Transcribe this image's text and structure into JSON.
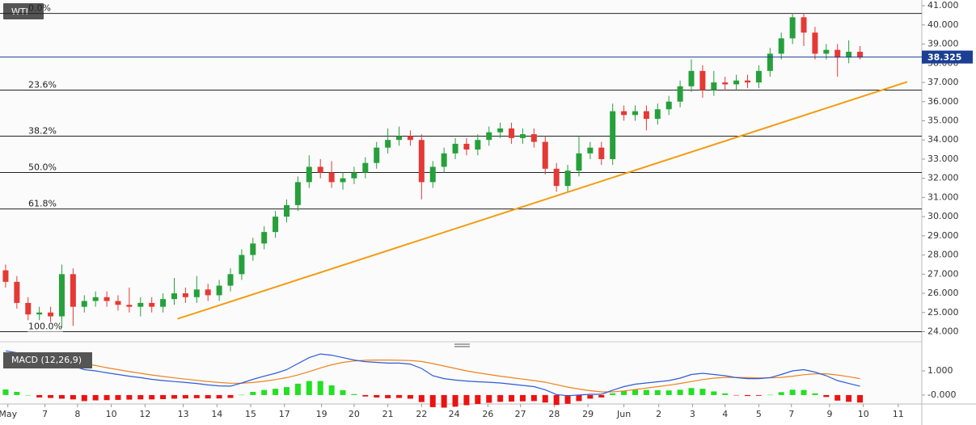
{
  "symbol": "WTI",
  "chart_data": [
    {
      "type": "candlestick",
      "xlim": [
        -0.5,
        81.5
      ],
      "ylim": [
        23.6,
        41.3
      ],
      "yticks": [
        {
          "value": 24,
          "label": "24.000"
        },
        {
          "value": 25,
          "label": "25.000"
        },
        {
          "value": 26,
          "label": "26.000"
        },
        {
          "value": 27,
          "label": "27.000"
        },
        {
          "value": 28,
          "label": "28.000"
        },
        {
          "value": 29,
          "label": "29.000"
        },
        {
          "value": 30,
          "label": "30.000"
        },
        {
          "value": 31,
          "label": "31.000"
        },
        {
          "value": 32,
          "label": "32.000"
        },
        {
          "value": 33,
          "label": "33.000"
        },
        {
          "value": 34,
          "label": "34.000"
        },
        {
          "value": 35,
          "label": "35.000"
        },
        {
          "value": 36,
          "label": "36.000"
        },
        {
          "value": 37,
          "label": "37.000"
        },
        {
          "value": 38,
          "label": "38.000"
        },
        {
          "value": 39,
          "label": "39.000"
        },
        {
          "value": 40,
          "label": "40.000"
        },
        {
          "value": 41,
          "label": "41.000"
        }
      ],
      "up_color": "#26a03b",
      "down_color": "#e53935",
      "open": [
        27.2,
        26.6,
        25.5,
        24.9,
        25.0,
        24.8,
        27.0,
        25.3,
        25.6,
        25.8,
        25.6,
        25.4,
        25.3,
        25.5,
        25.3,
        25.7,
        26.0,
        25.8,
        26.2,
        25.9,
        26.4,
        27.0,
        28.0,
        28.6,
        29.2,
        30.0,
        30.6,
        31.8,
        32.6,
        32.3,
        31.8,
        32.0,
        32.3,
        32.8,
        33.6,
        34.0,
        34.2,
        34.0,
        31.8,
        32.6,
        33.3,
        33.8,
        33.5,
        34.0,
        34.4,
        34.6,
        34.1,
        34.3,
        33.9,
        32.5,
        31.6,
        32.4,
        33.3,
        33.6,
        33.0,
        35.5,
        35.3,
        35.5,
        35.1,
        35.6,
        36.0,
        36.8,
        37.6,
        36.6,
        37.0,
        36.9,
        37.1,
        37.0,
        37.6,
        38.5,
        39.3,
        40.4,
        39.6,
        38.5,
        38.7,
        38.3,
        38.6
      ],
      "high": [
        27.5,
        26.9,
        25.8,
        25.3,
        25.3,
        27.5,
        27.3,
        25.9,
        26.1,
        26.1,
        25.9,
        26.3,
        25.8,
        25.8,
        26.0,
        26.8,
        26.3,
        26.9,
        26.5,
        26.7,
        27.3,
        28.3,
        28.9,
        29.5,
        30.3,
        30.9,
        32.1,
        33.2,
        33.0,
        32.9,
        32.3,
        32.6,
        33.1,
        33.9,
        34.6,
        34.7,
        34.5,
        34.3,
        32.9,
        33.6,
        34.1,
        34.1,
        34.3,
        34.7,
        34.9,
        34.9,
        34.6,
        34.6,
        34.2,
        32.8,
        32.7,
        34.2,
        33.9,
        33.9,
        35.9,
        35.8,
        35.8,
        35.8,
        35.9,
        36.3,
        37.1,
        38.2,
        37.9,
        37.6,
        37.3,
        37.4,
        37.4,
        37.9,
        38.8,
        39.6,
        40.6,
        40.6,
        39.9,
        39.0,
        39.0,
        39.2,
        38.9
      ],
      "low": [
        26.3,
        25.2,
        24.6,
        24.6,
        24.5,
        24.2,
        24.3,
        25.0,
        25.3,
        25.3,
        25.1,
        25.0,
        24.8,
        25.0,
        25.0,
        25.4,
        25.5,
        25.5,
        25.6,
        25.6,
        26.1,
        26.7,
        27.7,
        28.3,
        28.9,
        29.7,
        30.3,
        31.5,
        32.0,
        31.5,
        31.4,
        31.7,
        32.0,
        32.5,
        33.3,
        33.7,
        33.7,
        30.9,
        31.5,
        32.3,
        33.0,
        33.2,
        33.2,
        33.7,
        34.1,
        33.8,
        33.8,
        33.6,
        32.2,
        31.3,
        31.3,
        32.1,
        33.0,
        32.7,
        32.7,
        35.0,
        35.0,
        34.5,
        34.8,
        35.3,
        35.7,
        36.5,
        36.2,
        36.3,
        36.6,
        36.6,
        36.7,
        36.7,
        37.3,
        38.2,
        39.0,
        38.9,
        38.2,
        38.2,
        37.3,
        38.0,
        38.2
      ],
      "close": [
        26.6,
        25.5,
        24.9,
        25.0,
        24.8,
        27.0,
        25.3,
        25.6,
        25.8,
        25.6,
        25.4,
        25.3,
        25.5,
        25.3,
        25.7,
        26.0,
        25.8,
        26.2,
        25.9,
        26.4,
        27.0,
        28.0,
        28.6,
        29.2,
        30.0,
        30.6,
        31.8,
        32.6,
        32.3,
        31.8,
        32.0,
        32.3,
        32.8,
        33.6,
        34.0,
        34.2,
        34.0,
        31.8,
        32.6,
        33.3,
        33.8,
        33.5,
        34.0,
        34.4,
        34.6,
        34.1,
        34.3,
        33.9,
        32.5,
        31.6,
        32.4,
        33.3,
        33.6,
        33.0,
        35.5,
        35.3,
        35.5,
        35.1,
        35.6,
        36.0,
        36.8,
        37.6,
        36.6,
        37.0,
        36.9,
        37.1,
        37.0,
        37.6,
        38.5,
        39.3,
        40.4,
        39.6,
        38.5,
        38.7,
        38.3,
        38.6,
        38.3
      ],
      "last_price": 38.325,
      "last_price_color": "#1c3f94",
      "fib_levels": [
        {
          "label": "0.0%",
          "price": 40.6
        },
        {
          "label": "23.6%",
          "price": 36.6
        },
        {
          "label": "38.2%",
          "price": 34.2
        },
        {
          "label": "50.0%",
          "price": 32.3
        },
        {
          "label": "61.8%",
          "price": 30.4
        },
        {
          "label": "100.0%",
          "price": 24.0
        }
      ],
      "trendline": {
        "x": [
          15.3,
          80.2
        ],
        "y": [
          24.67,
          37.03
        ],
        "color": "#f39c12"
      }
    },
    {
      "type": "macd",
      "title": "MACD (12,26,9)",
      "xlim": [
        -0.5,
        81.5
      ],
      "ylim": [
        -0.37,
        1.97
      ],
      "yticks": [
        {
          "value": 1,
          "label": "1.000"
        },
        {
          "value": 0,
          "label": "-0.000"
        }
      ],
      "xticks": [
        {
          "value": 0.2,
          "label": "May"
        },
        {
          "value": 3.5,
          "label": "7"
        },
        {
          "value": 6.4,
          "label": "8"
        },
        {
          "value": 9.4,
          "label": "10"
        },
        {
          "value": 12.4,
          "label": "12"
        },
        {
          "value": 15.8,
          "label": "13"
        },
        {
          "value": 18.8,
          "label": "14"
        },
        {
          "value": 21.8,
          "label": "15"
        },
        {
          "value": 24.8,
          "label": "17"
        },
        {
          "value": 28.1,
          "label": "19"
        },
        {
          "value": 31,
          "label": "20"
        },
        {
          "value": 34,
          "label": "21"
        },
        {
          "value": 37,
          "label": "22"
        },
        {
          "value": 39.9,
          "label": "24"
        },
        {
          "value": 42.9,
          "label": "26"
        },
        {
          "value": 45.8,
          "label": "27"
        },
        {
          "value": 48.8,
          "label": "28"
        },
        {
          "value": 51.8,
          "label": "29"
        },
        {
          "value": 55,
          "label": "Jun"
        },
        {
          "value": 58.1,
          "label": "2"
        },
        {
          "value": 61.1,
          "label": "3"
        },
        {
          "value": 64,
          "label": "4"
        },
        {
          "value": 67,
          "label": "5"
        },
        {
          "value": 69.9,
          "label": "7"
        },
        {
          "value": 73.3,
          "label": "9"
        },
        {
          "value": 76.3,
          "label": "10"
        },
        {
          "value": 79.4,
          "label": "11"
        }
      ],
      "macd": {
        "color": "#2e5bd8",
        "values": [
          1.83,
          1.75,
          1.6,
          1.45,
          1.38,
          1.3,
          1.2,
          1.05,
          1.0,
          0.92,
          0.85,
          0.78,
          0.72,
          0.65,
          0.6,
          0.56,
          0.52,
          0.48,
          0.42,
          0.38,
          0.37,
          0.5,
          0.65,
          0.78,
          0.9,
          1.05,
          1.3,
          1.55,
          1.7,
          1.65,
          1.55,
          1.45,
          1.38,
          1.35,
          1.32,
          1.32,
          1.28,
          1.1,
          0.8,
          0.68,
          0.62,
          0.58,
          0.55,
          0.53,
          0.5,
          0.45,
          0.4,
          0.35,
          0.22,
          0.02,
          -0.03,
          0.0,
          0.03,
          0.03,
          0.2,
          0.35,
          0.45,
          0.5,
          0.55,
          0.6,
          0.7,
          0.85,
          0.9,
          0.85,
          0.8,
          0.72,
          0.68,
          0.68,
          0.72,
          0.85,
          1.0,
          1.05,
          0.95,
          0.8,
          0.6,
          0.48,
          0.37
        ]
      },
      "signal": {
        "color": "#f0821e",
        "values": [
          1.6,
          1.62,
          1.6,
          1.55,
          1.5,
          1.45,
          1.38,
          1.3,
          1.22,
          1.13,
          1.05,
          0.97,
          0.9,
          0.83,
          0.77,
          0.71,
          0.66,
          0.61,
          0.56,
          0.52,
          0.49,
          0.49,
          0.52,
          0.57,
          0.64,
          0.72,
          0.83,
          0.97,
          1.12,
          1.25,
          1.35,
          1.41,
          1.44,
          1.45,
          1.45,
          1.44,
          1.43,
          1.39,
          1.3,
          1.2,
          1.1,
          1.0,
          0.92,
          0.85,
          0.78,
          0.72,
          0.66,
          0.6,
          0.53,
          0.43,
          0.33,
          0.25,
          0.18,
          0.13,
          0.13,
          0.17,
          0.23,
          0.29,
          0.35,
          0.41,
          0.48,
          0.56,
          0.64,
          0.7,
          0.73,
          0.73,
          0.72,
          0.71,
          0.71,
          0.73,
          0.78,
          0.84,
          0.88,
          0.88,
          0.83,
          0.76,
          0.68
        ]
      },
      "histogram": {
        "up_color": "#22e022",
        "down_color": "#ee1111",
        "values": [
          0.23,
          0.13,
          0,
          -0.1,
          -0.12,
          -0.15,
          -0.18,
          -0.25,
          -0.22,
          -0.21,
          -0.2,
          -0.19,
          -0.18,
          -0.18,
          -0.17,
          -0.15,
          -0.14,
          -0.13,
          -0.14,
          -0.14,
          -0.12,
          0.01,
          0.13,
          0.21,
          0.26,
          0.33,
          0.47,
          0.58,
          0.58,
          0.4,
          0.2,
          0.04,
          -0.06,
          -0.1,
          -0.13,
          -0.12,
          -0.15,
          -0.29,
          -0.5,
          -0.52,
          -0.48,
          -0.42,
          -0.37,
          -0.32,
          -0.28,
          -0.27,
          -0.26,
          -0.25,
          -0.31,
          -0.41,
          -0.36,
          -0.25,
          -0.15,
          -0.1,
          0.07,
          0.18,
          0.22,
          0.21,
          0.2,
          0.19,
          0.22,
          0.29,
          0.26,
          0.15,
          0.07,
          -0.01,
          -0.04,
          -0.03,
          0.01,
          0.12,
          0.22,
          0.21,
          0.07,
          -0.08,
          -0.23,
          -0.28,
          -0.31
        ]
      }
    }
  ]
}
